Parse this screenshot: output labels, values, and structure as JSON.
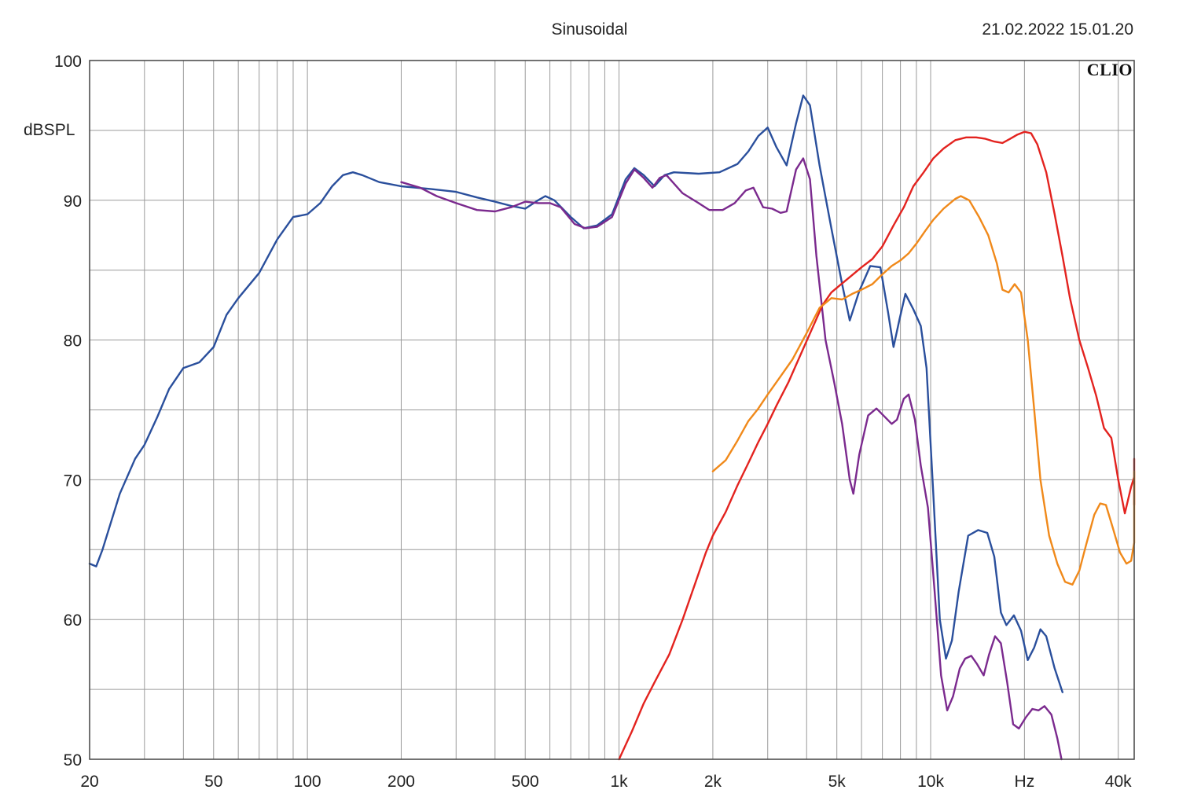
{
  "header": {
    "title": "Sinusoidal",
    "timestamp": "21.02.2022 15.01.20",
    "ylabel": "dBSPL",
    "brand": "CLIO"
  },
  "chart_data": {
    "type": "line",
    "title": "Sinusoidal",
    "xlabel": "",
    "ylabel": "dBSPL",
    "xscale": "log",
    "xlim": [
      20,
      45000
    ],
    "ylim": [
      50,
      100
    ],
    "grid": true,
    "x_ticks": [
      {
        "value": 20,
        "label": "20"
      },
      {
        "value": 50,
        "label": "50"
      },
      {
        "value": 100,
        "label": "100"
      },
      {
        "value": 200,
        "label": "200"
      },
      {
        "value": 500,
        "label": "500"
      },
      {
        "value": 1000,
        "label": "1k"
      },
      {
        "value": 2000,
        "label": "2k"
      },
      {
        "value": 5000,
        "label": "5k"
      },
      {
        "value": 10000,
        "label": "10k"
      },
      {
        "value": 20000,
        "label": "Hz"
      },
      {
        "value": 40000,
        "label": "40k"
      }
    ],
    "y_ticks": [
      {
        "value": 100,
        "label": "100"
      },
      {
        "value": 90,
        "label": "90"
      },
      {
        "value": 80,
        "label": "80"
      },
      {
        "value": 70,
        "label": "70"
      },
      {
        "value": 60,
        "label": "60"
      },
      {
        "value": 50,
        "label": "50"
      }
    ],
    "series": [
      {
        "color": "#2a4f9c",
        "points": [
          [
            20,
            64
          ],
          [
            21,
            63.8
          ],
          [
            22,
            65
          ],
          [
            25,
            69
          ],
          [
            28,
            71.5
          ],
          [
            30,
            72.5
          ],
          [
            33,
            74.5
          ],
          [
            36,
            76.5
          ],
          [
            40,
            78
          ],
          [
            45,
            78.4
          ],
          [
            50,
            79.5
          ],
          [
            55,
            81.8
          ],
          [
            60,
            83
          ],
          [
            70,
            84.8
          ],
          [
            80,
            87.2
          ],
          [
            90,
            88.8
          ],
          [
            100,
            89
          ],
          [
            110,
            89.8
          ],
          [
            120,
            91
          ],
          [
            130,
            91.8
          ],
          [
            140,
            92
          ],
          [
            150,
            91.8
          ],
          [
            170,
            91.3
          ],
          [
            200,
            91
          ],
          [
            250,
            90.8
          ],
          [
            300,
            90.6
          ],
          [
            350,
            90.2
          ],
          [
            400,
            89.9
          ],
          [
            450,
            89.6
          ],
          [
            500,
            89.4
          ],
          [
            550,
            90
          ],
          [
            580,
            90.3
          ],
          [
            620,
            90
          ],
          [
            700,
            88.8
          ],
          [
            770,
            88
          ],
          [
            850,
            88.2
          ],
          [
            950,
            89
          ],
          [
            1050,
            91.5
          ],
          [
            1120,
            92.3
          ],
          [
            1200,
            91.8
          ],
          [
            1300,
            91
          ],
          [
            1400,
            91.8
          ],
          [
            1500,
            92
          ],
          [
            1800,
            91.9
          ],
          [
            2100,
            92
          ],
          [
            2400,
            92.6
          ],
          [
            2600,
            93.5
          ],
          [
            2800,
            94.6
          ],
          [
            3000,
            95.2
          ],
          [
            3200,
            93.8
          ],
          [
            3450,
            92.5
          ],
          [
            3700,
            95.5
          ],
          [
            3900,
            97.5
          ],
          [
            4100,
            96.8
          ],
          [
            4400,
            92.5
          ],
          [
            4800,
            88
          ],
          [
            5200,
            84
          ],
          [
            5500,
            81.4
          ],
          [
            5900,
            83.5
          ],
          [
            6400,
            85.3
          ],
          [
            6900,
            85.2
          ],
          [
            7300,
            82
          ],
          [
            7600,
            79.5
          ],
          [
            7950,
            81.5
          ],
          [
            8300,
            83.3
          ],
          [
            8800,
            82.2
          ],
          [
            9300,
            81
          ],
          [
            9700,
            78
          ],
          [
            10200,
            69
          ],
          [
            10700,
            60
          ],
          [
            11200,
            57.2
          ],
          [
            11700,
            58.5
          ],
          [
            12300,
            62
          ],
          [
            13200,
            66
          ],
          [
            14200,
            66.4
          ],
          [
            15200,
            66.2
          ],
          [
            16000,
            64.5
          ],
          [
            16800,
            60.5
          ],
          [
            17500,
            59.6
          ],
          [
            18500,
            60.3
          ],
          [
            19500,
            59.2
          ],
          [
            20500,
            57.1
          ],
          [
            21500,
            58
          ],
          [
            22500,
            59.3
          ],
          [
            23500,
            58.8
          ],
          [
            25000,
            56.5
          ],
          [
            26500,
            54.8
          ]
        ]
      },
      {
        "color": "#7b2a8e",
        "points": [
          [
            200,
            91.3
          ],
          [
            230,
            90.9
          ],
          [
            260,
            90.3
          ],
          [
            300,
            89.8
          ],
          [
            350,
            89.3
          ],
          [
            400,
            89.2
          ],
          [
            450,
            89.5
          ],
          [
            500,
            89.9
          ],
          [
            550,
            89.8
          ],
          [
            600,
            89.8
          ],
          [
            650,
            89.5
          ],
          [
            720,
            88.3
          ],
          [
            780,
            88
          ],
          [
            850,
            88.1
          ],
          [
            950,
            88.8
          ],
          [
            1050,
            91.2
          ],
          [
            1120,
            92.2
          ],
          [
            1200,
            91.6
          ],
          [
            1280,
            90.9
          ],
          [
            1350,
            91.6
          ],
          [
            1420,
            91.8
          ],
          [
            1600,
            90.5
          ],
          [
            1800,
            89.8
          ],
          [
            1950,
            89.3
          ],
          [
            2150,
            89.3
          ],
          [
            2350,
            89.8
          ],
          [
            2550,
            90.7
          ],
          [
            2700,
            90.9
          ],
          [
            2900,
            89.5
          ],
          [
            3100,
            89.4
          ],
          [
            3300,
            89.1
          ],
          [
            3450,
            89.2
          ],
          [
            3700,
            92.2
          ],
          [
            3900,
            93
          ],
          [
            4100,
            91.5
          ],
          [
            4300,
            86
          ],
          [
            4600,
            80
          ],
          [
            4900,
            77
          ],
          [
            5200,
            74
          ],
          [
            5500,
            70
          ],
          [
            5650,
            69
          ],
          [
            5900,
            71.8
          ],
          [
            6300,
            74.6
          ],
          [
            6700,
            75.1
          ],
          [
            7200,
            74.4
          ],
          [
            7500,
            74
          ],
          [
            7800,
            74.3
          ],
          [
            8200,
            75.8
          ],
          [
            8500,
            76.1
          ],
          [
            8900,
            74.3
          ],
          [
            9300,
            71
          ],
          [
            9800,
            68
          ],
          [
            10300,
            62
          ],
          [
            10800,
            56
          ],
          [
            11300,
            53.5
          ],
          [
            11800,
            54.5
          ],
          [
            12400,
            56.5
          ],
          [
            12900,
            57.2
          ],
          [
            13500,
            57.4
          ],
          [
            14100,
            56.8
          ],
          [
            14800,
            56
          ],
          [
            15400,
            57.5
          ],
          [
            16100,
            58.8
          ],
          [
            16800,
            58.3
          ],
          [
            17600,
            55.5
          ],
          [
            18400,
            52.5
          ],
          [
            19200,
            52.2
          ],
          [
            20200,
            53
          ],
          [
            21200,
            53.6
          ],
          [
            22200,
            53.5
          ],
          [
            23200,
            53.8
          ],
          [
            24400,
            53.2
          ],
          [
            25500,
            51.5
          ],
          [
            26300,
            50
          ]
        ]
      },
      {
        "color": "#e3231f",
        "points": [
          [
            1000,
            50
          ],
          [
            1100,
            52
          ],
          [
            1200,
            54
          ],
          [
            1300,
            55.5
          ],
          [
            1450,
            57.5
          ],
          [
            1600,
            60
          ],
          [
            1750,
            62.5
          ],
          [
            1900,
            64.8
          ],
          [
            2000,
            66
          ],
          [
            2200,
            67.7
          ],
          [
            2400,
            69.6
          ],
          [
            2600,
            71.2
          ],
          [
            2800,
            72.7
          ],
          [
            3000,
            74
          ],
          [
            3200,
            75.3
          ],
          [
            3500,
            77
          ],
          [
            3800,
            78.8
          ],
          [
            4200,
            81
          ],
          [
            4500,
            82.5
          ],
          [
            4800,
            83.4
          ],
          [
            5100,
            83.9
          ],
          [
            5500,
            84.5
          ],
          [
            6000,
            85.2
          ],
          [
            6500,
            85.8
          ],
          [
            7000,
            86.7
          ],
          [
            7600,
            88.2
          ],
          [
            8200,
            89.5
          ],
          [
            8800,
            91
          ],
          [
            9500,
            92
          ],
          [
            10200,
            93
          ],
          [
            11000,
            93.7
          ],
          [
            12000,
            94.3
          ],
          [
            13000,
            94.5
          ],
          [
            14000,
            94.5
          ],
          [
            15000,
            94.4
          ],
          [
            16000,
            94.2
          ],
          [
            17000,
            94.1
          ],
          [
            18000,
            94.4
          ],
          [
            19000,
            94.7
          ],
          [
            20000,
            94.9
          ],
          [
            21000,
            94.8
          ],
          [
            22000,
            94
          ],
          [
            23500,
            92
          ],
          [
            25000,
            89
          ],
          [
            26500,
            86
          ],
          [
            28000,
            83
          ],
          [
            30000,
            80
          ],
          [
            32000,
            78
          ],
          [
            34000,
            76
          ],
          [
            36000,
            73.7
          ],
          [
            38000,
            73
          ],
          [
            40000,
            70
          ],
          [
            42000,
            67.6
          ],
          [
            44000,
            69.5
          ],
          [
            46000,
            70.2
          ],
          [
            48000,
            70.3
          ],
          [
            50000,
            69.2
          ],
          [
            51500,
            68.2
          ],
          [
            53500,
            69.7
          ],
          [
            55500,
            70.8
          ],
          [
            56500,
            71.5
          ]
        ]
      },
      {
        "color": "#f0891a",
        "points": [
          [
            2000,
            70.6
          ],
          [
            2200,
            71.4
          ],
          [
            2400,
            72.8
          ],
          [
            2600,
            74.2
          ],
          [
            2800,
            75.1
          ],
          [
            3000,
            76.1
          ],
          [
            3300,
            77.4
          ],
          [
            3600,
            78.6
          ],
          [
            4000,
            80.5
          ],
          [
            4400,
            82.3
          ],
          [
            4800,
            83
          ],
          [
            5200,
            82.9
          ],
          [
            5600,
            83.3
          ],
          [
            6000,
            83.6
          ],
          [
            6500,
            84
          ],
          [
            7000,
            84.7
          ],
          [
            7500,
            85.3
          ],
          [
            8000,
            85.7
          ],
          [
            8500,
            86.2
          ],
          [
            9000,
            86.9
          ],
          [
            9600,
            87.8
          ],
          [
            10200,
            88.6
          ],
          [
            11000,
            89.4
          ],
          [
            12000,
            90.1
          ],
          [
            12500,
            90.3
          ],
          [
            13300,
            90
          ],
          [
            14300,
            88.8
          ],
          [
            15300,
            87.5
          ],
          [
            16300,
            85.5
          ],
          [
            17000,
            83.6
          ],
          [
            17800,
            83.4
          ],
          [
            18600,
            84
          ],
          [
            19500,
            83.4
          ],
          [
            20500,
            80
          ],
          [
            21500,
            75
          ],
          [
            22500,
            70
          ],
          [
            24000,
            66
          ],
          [
            25500,
            64
          ],
          [
            27000,
            62.7
          ],
          [
            28500,
            62.5
          ],
          [
            30000,
            63.5
          ],
          [
            31500,
            65.3
          ],
          [
            33500,
            67.5
          ],
          [
            35000,
            68.3
          ],
          [
            36500,
            68.2
          ],
          [
            38500,
            66.5
          ],
          [
            40500,
            64.8
          ],
          [
            42500,
            64
          ],
          [
            44000,
            64.2
          ],
          [
            46000,
            65.5
          ],
          [
            48000,
            67.2
          ],
          [
            50000,
            68.8
          ],
          [
            52000,
            69.8
          ],
          [
            54000,
            70.2
          ],
          [
            56500,
            70.6
          ]
        ]
      }
    ]
  }
}
